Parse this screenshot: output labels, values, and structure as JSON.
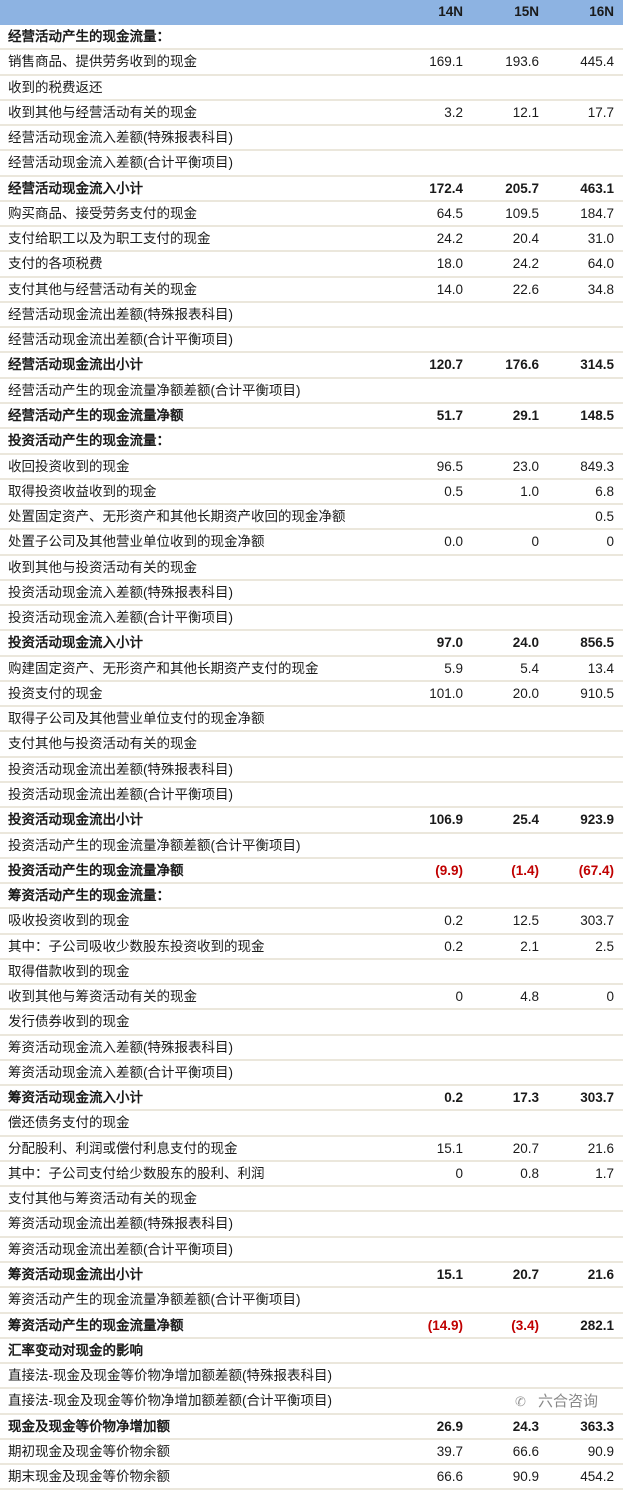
{
  "header": {
    "columns": [
      "14N",
      "15N",
      "16N"
    ],
    "background": "#8db3e2"
  },
  "negative_color": "#c00000",
  "rows": [
    {
      "label": "经营活动产生的现金流量：",
      "values": [
        "",
        "",
        ""
      ],
      "bold": true
    },
    {
      "label": "销售商品、提供劳务收到的现金",
      "values": [
        "169.1",
        "193.6",
        "445.4"
      ]
    },
    {
      "label": "收到的税费返还",
      "values": [
        "",
        "",
        ""
      ]
    },
    {
      "label": "收到其他与经营活动有关的现金",
      "values": [
        "3.2",
        "12.1",
        "17.7"
      ]
    },
    {
      "label": "经营活动现金流入差额(特殊报表科目)",
      "values": [
        "",
        "",
        ""
      ]
    },
    {
      "label": "经营活动现金流入差额(合计平衡项目)",
      "values": [
        "",
        "",
        ""
      ]
    },
    {
      "label": "经营活动现金流入小计",
      "values": [
        "172.4",
        "205.7",
        "463.1"
      ],
      "bold": true
    },
    {
      "label": "购买商品、接受劳务支付的现金",
      "values": [
        "64.5",
        "109.5",
        "184.7"
      ]
    },
    {
      "label": "支付给职工以及为职工支付的现金",
      "values": [
        "24.2",
        "20.4",
        "31.0"
      ]
    },
    {
      "label": "支付的各项税费",
      "values": [
        "18.0",
        "24.2",
        "64.0"
      ]
    },
    {
      "label": "支付其他与经营活动有关的现金",
      "values": [
        "14.0",
        "22.6",
        "34.8"
      ]
    },
    {
      "label": "经营活动现金流出差额(特殊报表科目)",
      "values": [
        "",
        "",
        ""
      ]
    },
    {
      "label": "经营活动现金流出差额(合计平衡项目)",
      "values": [
        "",
        "",
        ""
      ]
    },
    {
      "label": "经营活动现金流出小计",
      "values": [
        "120.7",
        "176.6",
        "314.5"
      ],
      "bold": true
    },
    {
      "label": "经营活动产生的现金流量净额差额(合计平衡项目)",
      "values": [
        "",
        "",
        ""
      ]
    },
    {
      "label": "经营活动产生的现金流量净额",
      "values": [
        "51.7",
        "29.1",
        "148.5"
      ],
      "bold": true
    },
    {
      "label": "投资活动产生的现金流量：",
      "values": [
        "",
        "",
        ""
      ],
      "bold": true
    },
    {
      "label": "收回投资收到的现金",
      "values": [
        "96.5",
        "23.0",
        "849.3"
      ]
    },
    {
      "label": "取得投资收益收到的现金",
      "values": [
        "0.5",
        "1.0",
        "6.8"
      ]
    },
    {
      "label": "处置固定资产、无形资产和其他长期资产收回的现金净额",
      "values": [
        "",
        "",
        "0.5"
      ]
    },
    {
      "label": "处置子公司及其他营业单位收到的现金净额",
      "values": [
        "0.0",
        "0",
        "0"
      ]
    },
    {
      "label": "收到其他与投资活动有关的现金",
      "values": [
        "",
        "",
        ""
      ]
    },
    {
      "label": "投资活动现金流入差额(特殊报表科目)",
      "values": [
        "",
        "",
        ""
      ]
    },
    {
      "label": "投资活动现金流入差额(合计平衡项目)",
      "values": [
        "",
        "",
        ""
      ]
    },
    {
      "label": "投资活动现金流入小计",
      "values": [
        "97.0",
        "24.0",
        "856.5"
      ],
      "bold": true
    },
    {
      "label": "购建固定资产、无形资产和其他长期资产支付的现金",
      "values": [
        "5.9",
        "5.4",
        "13.4"
      ]
    },
    {
      "label": "投资支付的现金",
      "values": [
        "101.0",
        "20.0",
        "910.5"
      ]
    },
    {
      "label": "取得子公司及其他营业单位支付的现金净额",
      "values": [
        "",
        "",
        ""
      ]
    },
    {
      "label": "支付其他与投资活动有关的现金",
      "values": [
        "",
        "",
        ""
      ]
    },
    {
      "label": "投资活动现金流出差额(特殊报表科目)",
      "values": [
        "",
        "",
        ""
      ]
    },
    {
      "label": "投资活动现金流出差额(合计平衡项目)",
      "values": [
        "",
        "",
        ""
      ]
    },
    {
      "label": "投资活动现金流出小计",
      "values": [
        "106.9",
        "25.4",
        "923.9"
      ],
      "bold": true
    },
    {
      "label": "投资活动产生的现金流量净额差额(合计平衡项目)",
      "values": [
        "",
        "",
        ""
      ]
    },
    {
      "label": "投资活动产生的现金流量净额",
      "values": [
        "(9.9)",
        "(1.4)",
        "(67.4)"
      ],
      "bold": true,
      "red": [
        true,
        true,
        true
      ]
    },
    {
      "label": "筹资活动产生的现金流量：",
      "values": [
        "",
        "",
        ""
      ],
      "bold": true
    },
    {
      "label": "吸收投资收到的现金",
      "values": [
        "0.2",
        "12.5",
        "303.7"
      ]
    },
    {
      "label": "其中：子公司吸收少数股东投资收到的现金",
      "values": [
        "0.2",
        "2.1",
        "2.5"
      ]
    },
    {
      "label": "取得借款收到的现金",
      "values": [
        "",
        "",
        ""
      ]
    },
    {
      "label": "收到其他与筹资活动有关的现金",
      "values": [
        "0",
        "4.8",
        "0"
      ]
    },
    {
      "label": "发行债券收到的现金",
      "values": [
        "",
        "",
        ""
      ]
    },
    {
      "label": "筹资活动现金流入差额(特殊报表科目)",
      "values": [
        "",
        "",
        ""
      ]
    },
    {
      "label": "筹资活动现金流入差额(合计平衡项目)",
      "values": [
        "",
        "",
        ""
      ]
    },
    {
      "label": "筹资活动现金流入小计",
      "values": [
        "0.2",
        "17.3",
        "303.7"
      ],
      "bold": true
    },
    {
      "label": "偿还债务支付的现金",
      "values": [
        "",
        "",
        ""
      ]
    },
    {
      "label": "分配股利、利润或偿付利息支付的现金",
      "values": [
        "15.1",
        "20.7",
        "21.6"
      ]
    },
    {
      "label": "其中：子公司支付给少数股东的股利、利润",
      "values": [
        "0",
        "0.8",
        "1.7"
      ]
    },
    {
      "label": "支付其他与筹资活动有关的现金",
      "values": [
        "",
        "",
        ""
      ]
    },
    {
      "label": "筹资活动现金流出差额(特殊报表科目)",
      "values": [
        "",
        "",
        ""
      ]
    },
    {
      "label": "筹资活动现金流出差额(合计平衡项目)",
      "values": [
        "",
        "",
        ""
      ]
    },
    {
      "label": "筹资活动现金流出小计",
      "values": [
        "15.1",
        "20.7",
        "21.6"
      ],
      "bold": true
    },
    {
      "label": "筹资活动产生的现金流量净额差额(合计平衡项目)",
      "values": [
        "",
        "",
        ""
      ]
    },
    {
      "label": "筹资活动产生的现金流量净额",
      "values": [
        "(14.9)",
        "(3.4)",
        "282.1"
      ],
      "bold": true,
      "red": [
        true,
        true,
        false
      ]
    },
    {
      "label": "汇率变动对现金的影响",
      "values": [
        "",
        "",
        ""
      ],
      "bold": true
    },
    {
      "label": "直接法-现金及现金等价物净增加额差额(特殊报表科目)",
      "values": [
        "",
        "",
        ""
      ]
    },
    {
      "label": "直接法-现金及现金等价物净增加额差额(合计平衡项目)",
      "values": [
        "",
        "",
        ""
      ]
    },
    {
      "label": "现金及现金等价物净增加额",
      "values": [
        "26.9",
        "24.3",
        "363.3"
      ],
      "bold": true
    },
    {
      "label": "期初现金及现金等价物余额",
      "values": [
        "39.7",
        "66.6",
        "90.9"
      ]
    },
    {
      "label": "期末现金及现金等价物余额",
      "values": [
        "66.6",
        "90.9",
        "454.2"
      ]
    }
  ],
  "watermark": {
    "text": "六合咨询",
    "icon": "wechat-icon"
  }
}
